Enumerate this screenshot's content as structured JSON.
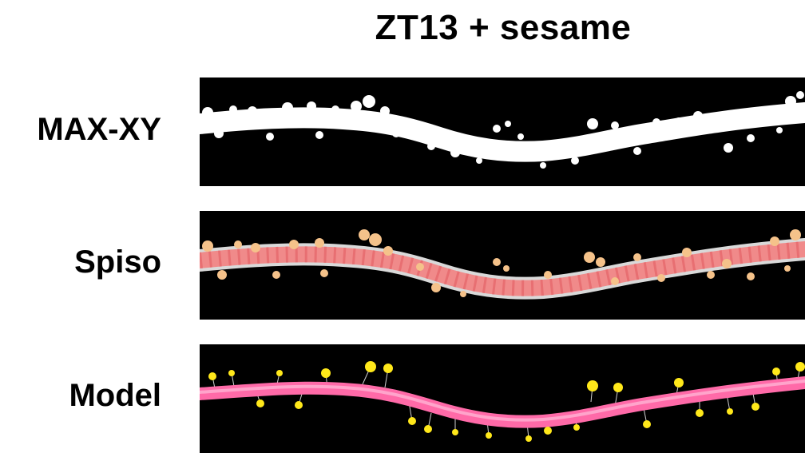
{
  "title": "ZT13 + sesame",
  "rows": [
    {
      "label": "MAX-XY"
    },
    {
      "label": "Spiso"
    },
    {
      "label": "Model"
    }
  ],
  "colors": {
    "background": "#ffffff",
    "panel": "#000000",
    "dendrite_raw": "#ffffff",
    "spiso_shaft": "#f08a8a",
    "spiso_spines": "#f5c28a",
    "model_shaft": "#ff6aa8",
    "model_spines": "#ffe81a"
  }
}
